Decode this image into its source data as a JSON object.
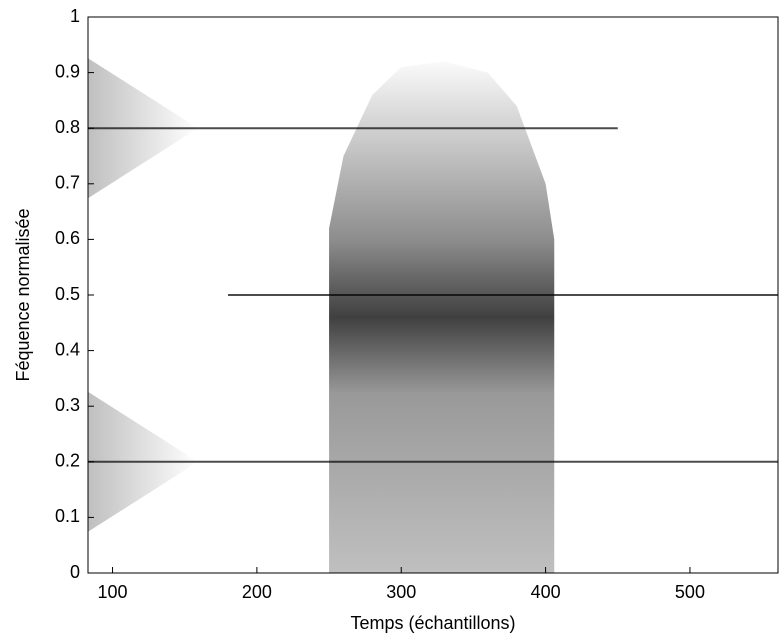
{
  "chart_data": {
    "type": "spectrogram",
    "xlabel": "Temps (échantillons)",
    "ylabel": "Féquence normalisée",
    "xlim": [
      83,
      561
    ],
    "ylim": [
      0,
      1
    ],
    "xticks": [
      100,
      200,
      300,
      400,
      500
    ],
    "yticks": [
      0,
      0.1,
      0.2,
      0.3,
      0.4,
      0.5,
      0.6,
      0.7,
      0.8,
      0.9,
      1
    ],
    "regions": [
      {
        "x": [
          250,
          260,
          280,
          300,
          330,
          360,
          380,
          400,
          406
        ],
        "values": [
          0.62,
          0.75,
          0.86,
          0.91,
          0.92,
          0.9,
          0.84,
          0.7,
          0.6
        ],
        "color": "#888888"
      }
    ],
    "series": [
      {
        "x": [
          83,
          450
        ],
        "values": [
          0.8,
          0.8
        ],
        "color": "#000000"
      },
      {
        "x": [
          180,
          561
        ],
        "values": [
          0.5,
          0.5
        ],
        "color": "#000000"
      },
      {
        "x": [
          83,
          561
        ],
        "values": [
          0.2,
          0.2
        ],
        "color": "#000000"
      }
    ]
  }
}
